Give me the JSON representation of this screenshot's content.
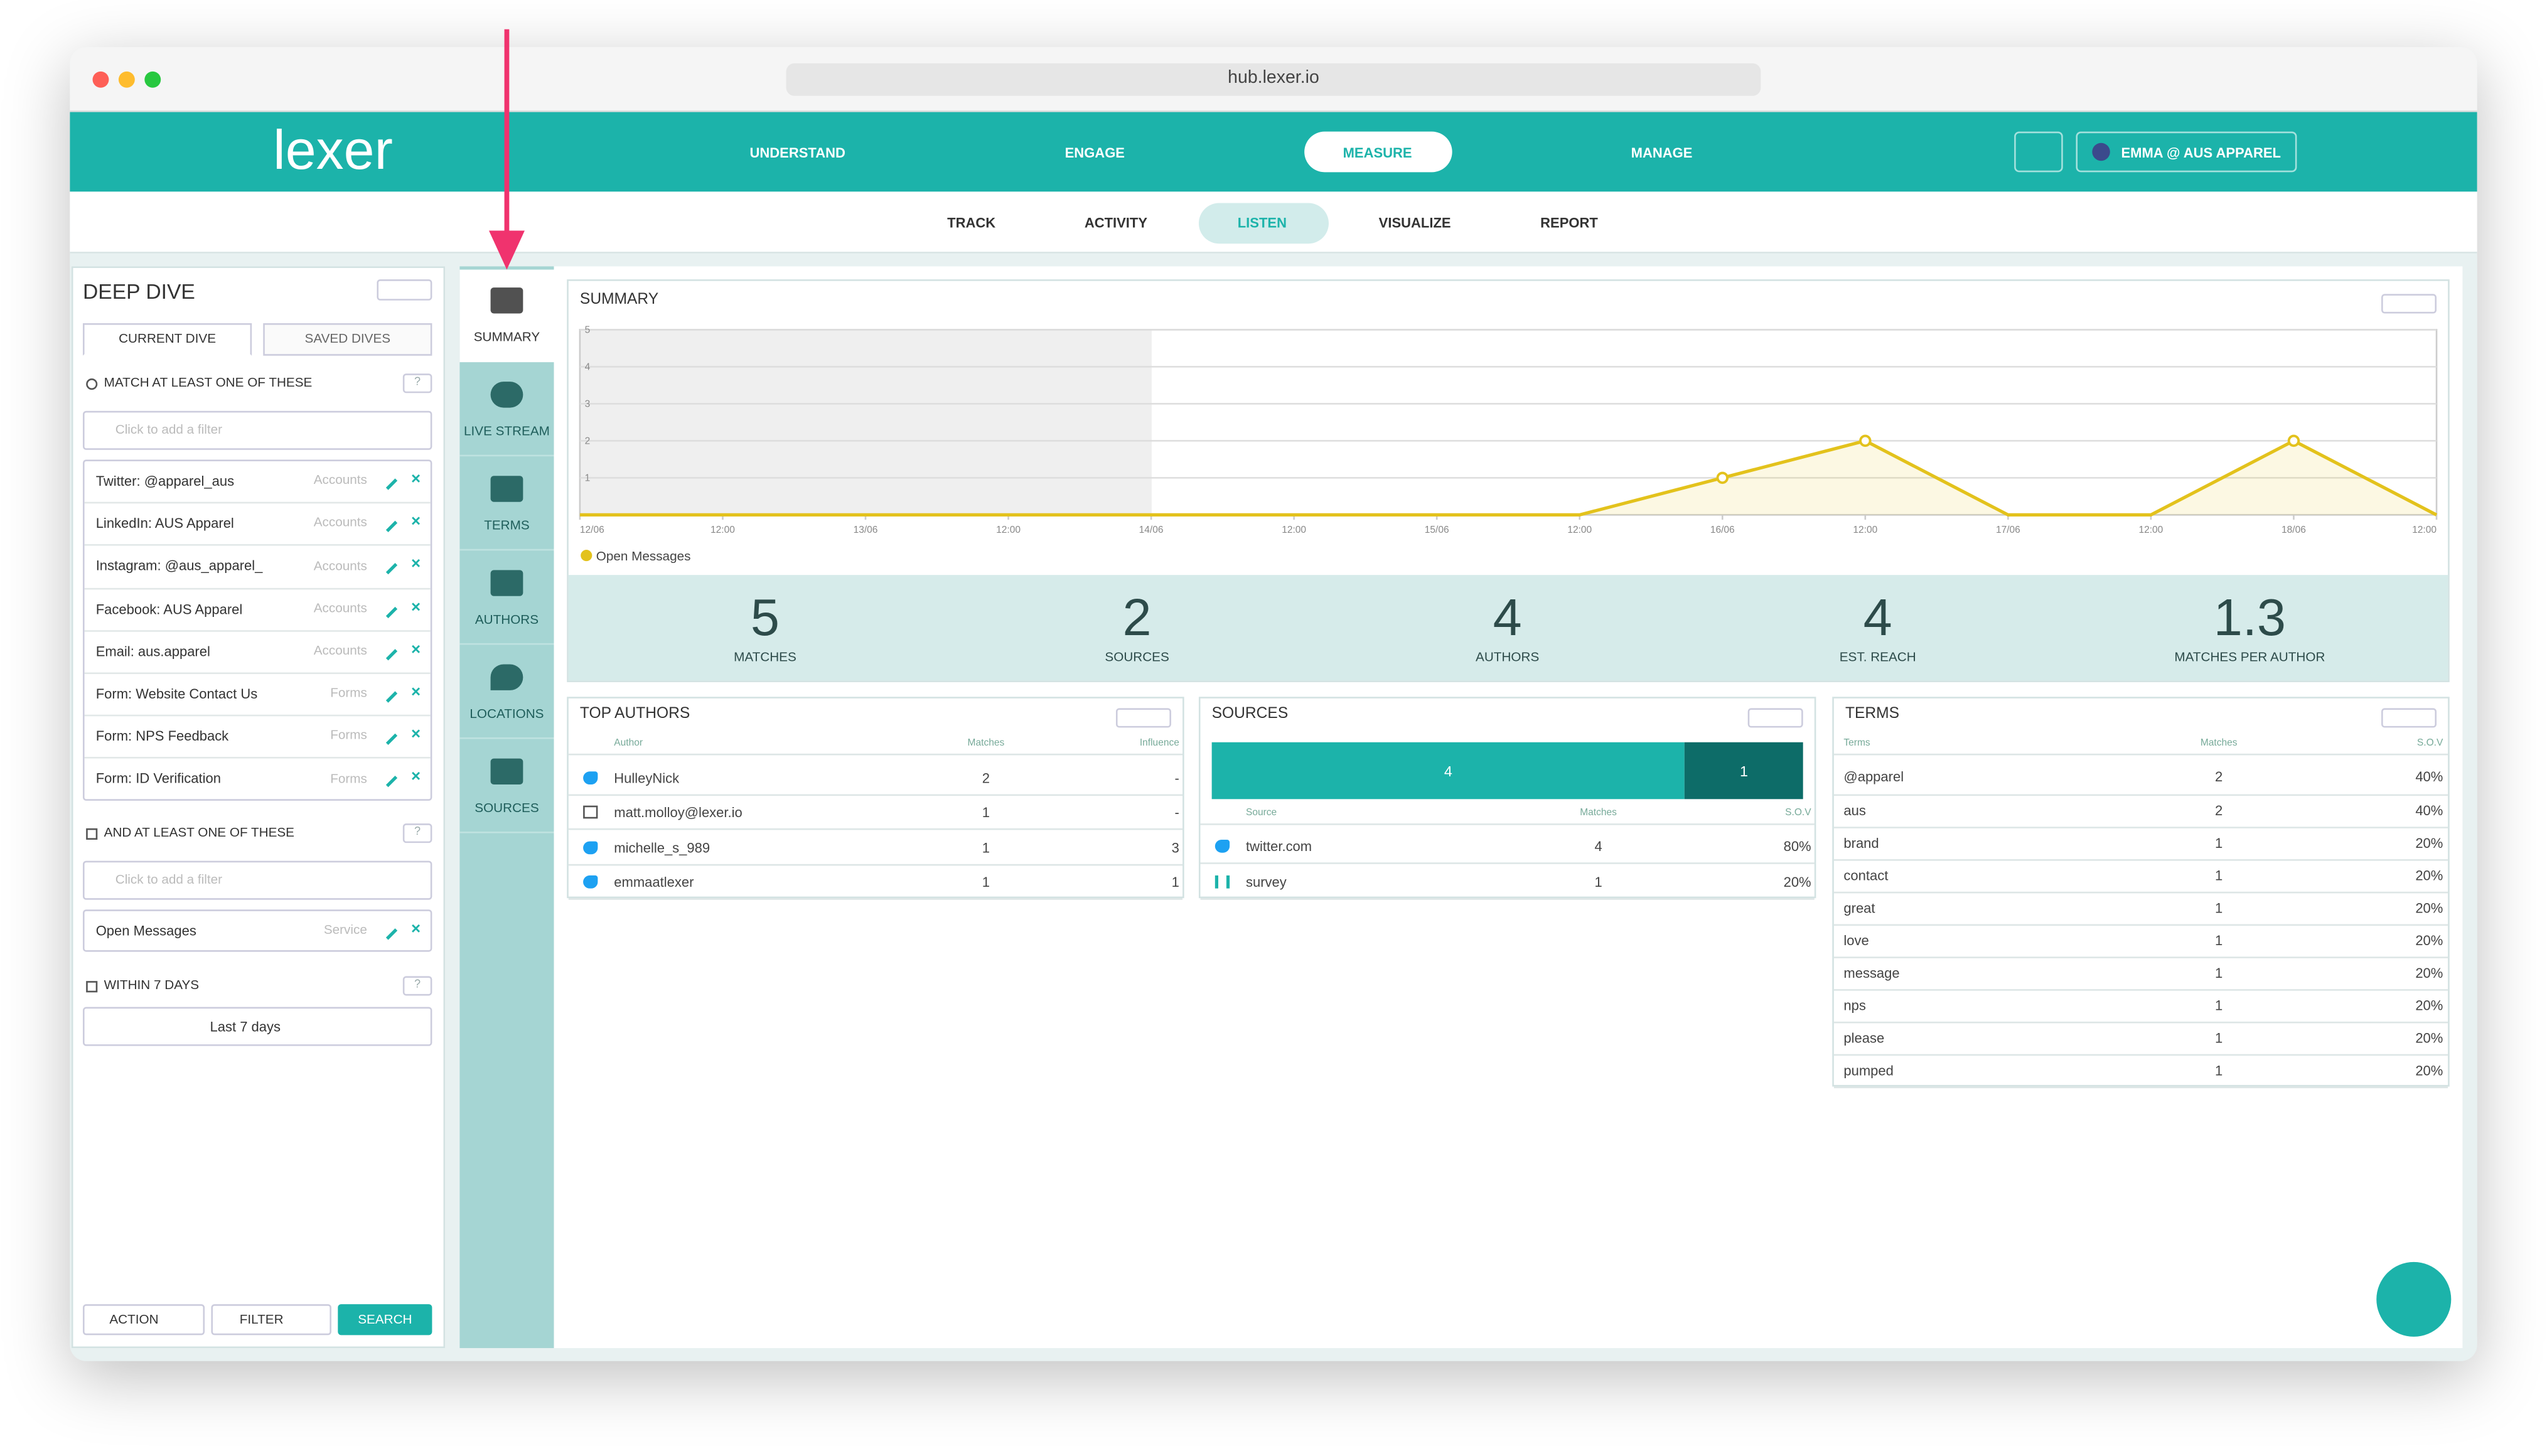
{
  "browser": {
    "url": "hub.lexer.io"
  },
  "nav": {
    "logo": "lexer",
    "tabs": [
      "UNDERSTAND",
      "ENGAGE",
      "MEASURE",
      "MANAGE"
    ],
    "active": 2,
    "user": "EMMA @ AUS APPAREL"
  },
  "subnav": {
    "tabs": [
      "TRACK",
      "ACTIVITY",
      "LISTEN",
      "VISUALIZE",
      "REPORT"
    ],
    "active": 2
  },
  "help": "?",
  "sidebar": {
    "title": "DEEP DIVE",
    "tabs": [
      "CURRENT DIVE",
      "SAVED DIVES"
    ],
    "active_tab": 0,
    "groups": [
      {
        "heading": "MATCH AT LEAST ONE OF THESE",
        "placeholder": "Click to add a filter",
        "filters": [
          {
            "label": "Twitter: @apparel_aus",
            "kind": "Accounts"
          },
          {
            "label": "LinkedIn: AUS Apparel",
            "kind": "Accounts"
          },
          {
            "label": "Instagram: @aus_apparel_",
            "kind": "Accounts"
          },
          {
            "label": "Facebook: AUS Apparel",
            "kind": "Accounts"
          },
          {
            "label": "Email: aus.apparel",
            "kind": "Accounts"
          },
          {
            "label": "Form: Website Contact Us",
            "kind": "Forms"
          },
          {
            "label": "Form: NPS Feedback",
            "kind": "Forms"
          },
          {
            "label": "Form: ID Verification",
            "kind": "Forms"
          }
        ]
      },
      {
        "heading": "AND AT LEAST ONE OF THESE",
        "placeholder": "Click to add a filter",
        "filters": [
          {
            "label": "Open Messages",
            "kind": "Service"
          }
        ]
      }
    ],
    "period": {
      "heading": "WITHIN 7 DAYS",
      "select": "Last 7 days"
    },
    "buttons": [
      "ACTION",
      "FILTER",
      "SEARCH"
    ]
  },
  "tools": {
    "items": [
      "SUMMARY",
      "LIVE STREAM",
      "TERMS",
      "AUTHORS",
      "LOCATIONS",
      "SOURCES"
    ],
    "active": 0
  },
  "chart_data": {
    "type": "line",
    "title": "SUMMARY",
    "categories": [
      "12/06",
      "12:00",
      "13/06",
      "12:00",
      "14/06",
      "12:00",
      "15/06",
      "12:00",
      "16/06",
      "12:00",
      "17/06",
      "12:00",
      "18/06",
      "12:00"
    ],
    "series": [
      {
        "name": "Open Messages",
        "color": "#e3c21c",
        "values": [
          0,
          0,
          0,
          0,
          0,
          0,
          0,
          0,
          1,
          2,
          0,
          0,
          2,
          0
        ]
      }
    ],
    "ylim": [
      0,
      5
    ],
    "yticks": [
      1,
      2,
      3,
      4,
      5
    ],
    "grid": true
  },
  "stats": [
    {
      "value": 5,
      "label": "MATCHES"
    },
    {
      "value": 2,
      "label": "SOURCES"
    },
    {
      "value": 4,
      "label": "AUTHORS"
    },
    {
      "value": 4,
      "label": "EST. REACH"
    },
    {
      "value": 1.3,
      "label": "MATCHES PER AUTHOR"
    }
  ],
  "top_authors": {
    "title": "TOP AUTHORS",
    "columns": [
      "Author",
      "Matches",
      "Influence"
    ],
    "rows": [
      {
        "channel": "twitter",
        "cells": [
          "HulleyNick",
          2,
          "-"
        ]
      },
      {
        "channel": "email",
        "cells": [
          "matt.molloy@lexer.io",
          1,
          "-"
        ]
      },
      {
        "channel": "twitter",
        "cells": [
          "michelle_s_989",
          1,
          3
        ]
      },
      {
        "channel": "twitter",
        "cells": [
          "emmaatlexer",
          1,
          1
        ]
      }
    ]
  },
  "sources": {
    "title": "SOURCES",
    "bar": [
      4,
      1
    ],
    "columns": [
      "Source",
      "Matches",
      "S.O.V"
    ],
    "rows": [
      {
        "channel": "twitter",
        "cells": [
          "twitter.com",
          4,
          "80%"
        ]
      },
      {
        "channel": "survey",
        "cells": [
          "survey",
          1,
          "20%"
        ]
      }
    ]
  },
  "terms": {
    "title": "TERMS",
    "columns": [
      "Terms",
      "Matches",
      "S.O.V"
    ],
    "rows": [
      [
        "@apparel",
        2,
        "40%"
      ],
      [
        "aus",
        2,
        "40%"
      ],
      [
        "brand",
        1,
        "20%"
      ],
      [
        "contact",
        1,
        "20%"
      ],
      [
        "great",
        1,
        "20%"
      ],
      [
        "love",
        1,
        "20%"
      ],
      [
        "message",
        1,
        "20%"
      ],
      [
        "nps",
        1,
        "20%"
      ],
      [
        "please",
        1,
        "20%"
      ],
      [
        "pumped",
        1,
        "20%"
      ]
    ]
  }
}
